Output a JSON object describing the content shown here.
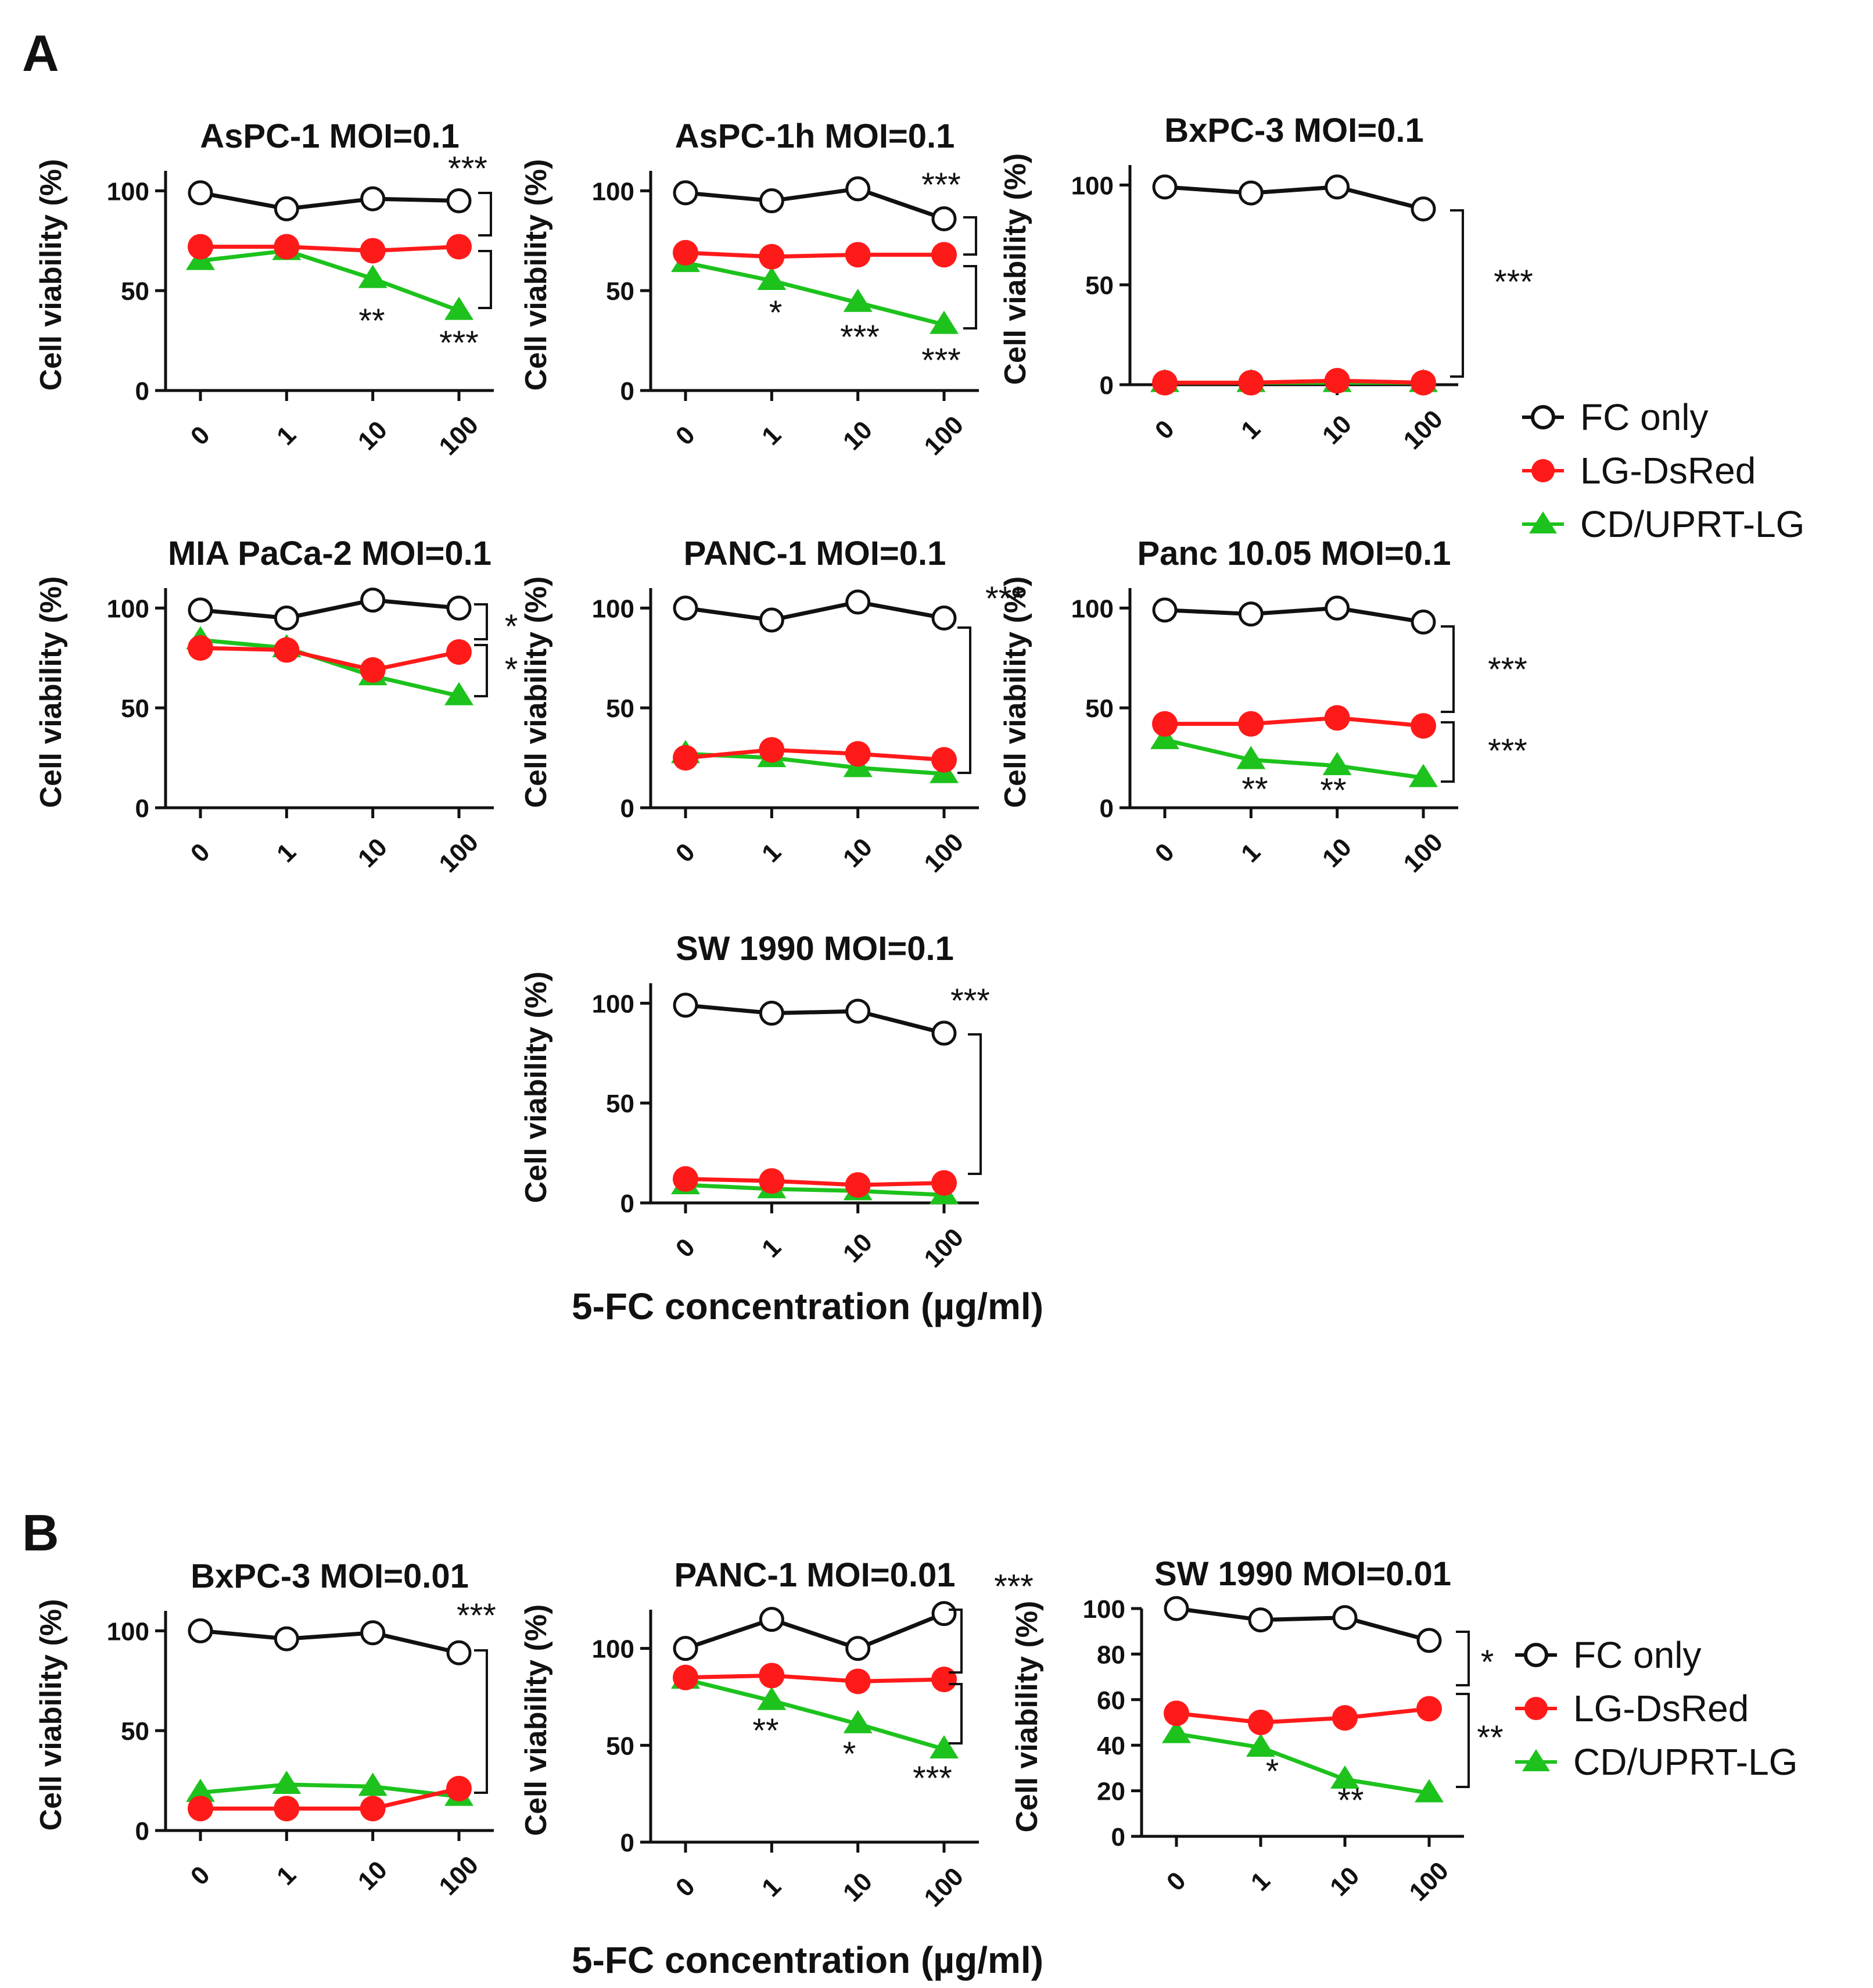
{
  "figure": {
    "panel_a_letter": "A",
    "panel_b_letter": "B",
    "x_axis_title": "5-FC concentration (µg/ml)",
    "y_axis_title": "Cell viability (%)",
    "legend": [
      {
        "label": "FC only",
        "marker": "open-circle",
        "color": "#111111"
      },
      {
        "label": "LG-DsRed",
        "marker": "filled-circle",
        "color": "#ff1a1a"
      },
      {
        "label": "CD/UPRT-LG",
        "marker": "triangle",
        "color": "#1dc21d"
      }
    ]
  },
  "colors": {
    "fc_only": "#111111",
    "lg_dsred": "#ff1a1a",
    "cd_uprt_lg": "#1dc21d"
  },
  "chart_data": [
    {
      "panel": "A",
      "type": "line",
      "title": "AsPC-1 MOI=0.1",
      "categories": [
        "0",
        "1",
        "10",
        "100"
      ],
      "xlabel": "5-FC concentration (µg/ml)",
      "ylabel": "Cell viability (%)",
      "ylim": [
        0,
        110
      ],
      "yticks": [
        0,
        50,
        100
      ],
      "series": [
        {
          "name": "FC only",
          "values": [
            99,
            91,
            96,
            95
          ]
        },
        {
          "name": "LG-DsRed",
          "values": [
            72,
            72,
            70,
            72
          ]
        },
        {
          "name": "CD/UPRT-LG",
          "values": [
            65,
            70,
            56,
            40
          ]
        }
      ],
      "annotations": [
        "***",
        "**",
        "***"
      ]
    },
    {
      "panel": "A",
      "type": "line",
      "title": "AsPC-1h MOI=0.1",
      "categories": [
        "0",
        "1",
        "10",
        "100"
      ],
      "xlabel": "5-FC concentration (µg/ml)",
      "ylabel": "Cell viability (%)",
      "ylim": [
        0,
        110
      ],
      "yticks": [
        0,
        50,
        100
      ],
      "series": [
        {
          "name": "FC only",
          "values": [
            99,
            95,
            101,
            86
          ]
        },
        {
          "name": "LG-DsRed",
          "values": [
            69,
            67,
            68,
            68
          ]
        },
        {
          "name": "CD/UPRT-LG",
          "values": [
            64,
            55,
            44,
            33
          ]
        }
      ],
      "annotations": [
        "***",
        "*",
        "***",
        "***"
      ]
    },
    {
      "panel": "A",
      "type": "line",
      "title": "BxPC-3 MOI=0.1",
      "categories": [
        "0",
        "1",
        "10",
        "100"
      ],
      "xlabel": "5-FC concentration (µg/ml)",
      "ylabel": "Cell viability (%)",
      "ylim": [
        0,
        110
      ],
      "yticks": [
        0,
        50,
        100
      ],
      "series": [
        {
          "name": "FC only",
          "values": [
            99,
            96,
            99,
            88
          ]
        },
        {
          "name": "LG-DsRed",
          "values": [
            1,
            1,
            2,
            1
          ]
        },
        {
          "name": "CD/UPRT-LG",
          "values": [
            1,
            1,
            1,
            1
          ]
        }
      ],
      "annotations": [
        "***"
      ]
    },
    {
      "panel": "A",
      "type": "line",
      "title": "MIA PaCa-2 MOI=0.1",
      "categories": [
        "0",
        "1",
        "10",
        "100"
      ],
      "xlabel": "5-FC concentration (µg/ml)",
      "ylabel": "Cell viability (%)",
      "ylim": [
        0,
        110
      ],
      "yticks": [
        0,
        50,
        100
      ],
      "series": [
        {
          "name": "FC only",
          "values": [
            99,
            95,
            104,
            100
          ]
        },
        {
          "name": "LG-DsRed",
          "values": [
            80,
            79,
            69,
            78
          ]
        },
        {
          "name": "CD/UPRT-LG",
          "values": [
            84,
            80,
            66,
            56
          ]
        }
      ],
      "annotations": [
        "*",
        "*"
      ]
    },
    {
      "panel": "A",
      "type": "line",
      "title": "PANC-1 MOI=0.1",
      "categories": [
        "0",
        "1",
        "10",
        "100"
      ],
      "xlabel": "5-FC concentration (µg/ml)",
      "ylabel": "Cell viability (%)",
      "ylim": [
        0,
        110
      ],
      "yticks": [
        0,
        50,
        100
      ],
      "series": [
        {
          "name": "FC only",
          "values": [
            100,
            94,
            103,
            95
          ]
        },
        {
          "name": "LG-DsRed",
          "values": [
            25,
            29,
            27,
            24
          ]
        },
        {
          "name": "CD/UPRT-LG",
          "values": [
            27,
            25,
            20,
            17
          ]
        }
      ],
      "annotations": [
        "***"
      ]
    },
    {
      "panel": "A",
      "type": "line",
      "title": "Panc 10.05 MOI=0.1",
      "categories": [
        "0",
        "1",
        "10",
        "100"
      ],
      "xlabel": "5-FC concentration (µg/ml)",
      "ylabel": "Cell viability (%)",
      "ylim": [
        0,
        110
      ],
      "yticks": [
        0,
        50,
        100
      ],
      "series": [
        {
          "name": "FC only",
          "values": [
            99,
            97,
            100,
            93
          ]
        },
        {
          "name": "LG-DsRed",
          "values": [
            42,
            42,
            45,
            41
          ]
        },
        {
          "name": "CD/UPRT-LG",
          "values": [
            34,
            24,
            21,
            15
          ]
        }
      ],
      "annotations": [
        "***",
        "***",
        "**",
        "**"
      ]
    },
    {
      "panel": "A",
      "type": "line",
      "title": "SW 1990 MOI=0.1",
      "categories": [
        "0",
        "1",
        "10",
        "100"
      ],
      "xlabel": "5-FC concentration (µg/ml)",
      "ylabel": "Cell viability (%)",
      "ylim": [
        0,
        110
      ],
      "yticks": [
        0,
        50,
        100
      ],
      "series": [
        {
          "name": "FC only",
          "values": [
            99,
            95,
            96,
            85
          ]
        },
        {
          "name": "LG-DsRed",
          "values": [
            12,
            11,
            9,
            10
          ]
        },
        {
          "name": "CD/UPRT-LG",
          "values": [
            9,
            7,
            6,
            4
          ]
        }
      ],
      "annotations": [
        "***"
      ]
    },
    {
      "panel": "B",
      "type": "line",
      "title": "BxPC-3 MOI=0.01",
      "categories": [
        "0",
        "1",
        "10",
        "100"
      ],
      "xlabel": "5-FC concentration (µg/ml)",
      "ylabel": "Cell viability (%)",
      "ylim": [
        0,
        110
      ],
      "yticks": [
        0,
        50,
        100
      ],
      "series": [
        {
          "name": "FC only",
          "values": [
            100,
            96,
            99,
            89
          ]
        },
        {
          "name": "LG-DsRed",
          "values": [
            11,
            11,
            11,
            21
          ]
        },
        {
          "name": "CD/UPRT-LG",
          "values": [
            19,
            23,
            22,
            17
          ]
        }
      ],
      "annotations": [
        "***"
      ]
    },
    {
      "panel": "B",
      "type": "line",
      "title": "PANC-1 MOI=0.01",
      "categories": [
        "0",
        "1",
        "10",
        "100"
      ],
      "xlabel": "5-FC concentration (µg/ml)",
      "ylabel": "Cell viability (%)",
      "ylim": [
        0,
        120
      ],
      "yticks": [
        0,
        50,
        100
      ],
      "series": [
        {
          "name": "FC only",
          "values": [
            100,
            115,
            100,
            118
          ]
        },
        {
          "name": "LG-DsRed",
          "values": [
            85,
            86,
            83,
            84
          ]
        },
        {
          "name": "CD/UPRT-LG",
          "values": [
            84,
            73,
            61,
            48
          ]
        }
      ],
      "annotations": [
        "***",
        "**",
        "*",
        "***"
      ]
    },
    {
      "panel": "B",
      "type": "line",
      "title": "SW 1990 MOI=0.01",
      "categories": [
        "0",
        "1",
        "10",
        "100"
      ],
      "xlabel": "5-FC concentration (µg/ml)",
      "ylabel": "Cell viability (%)",
      "ylim": [
        0,
        100
      ],
      "yticks": [
        0,
        20,
        40,
        60,
        80,
        100
      ],
      "series": [
        {
          "name": "FC only",
          "values": [
            100,
            95,
            96,
            86
          ]
        },
        {
          "name": "LG-DsRed",
          "values": [
            54,
            50,
            52,
            56
          ]
        },
        {
          "name": "CD/UPRT-LG",
          "values": [
            45,
            39,
            25,
            19
          ]
        }
      ],
      "annotations": [
        "*",
        "**",
        "*",
        "**"
      ]
    }
  ]
}
